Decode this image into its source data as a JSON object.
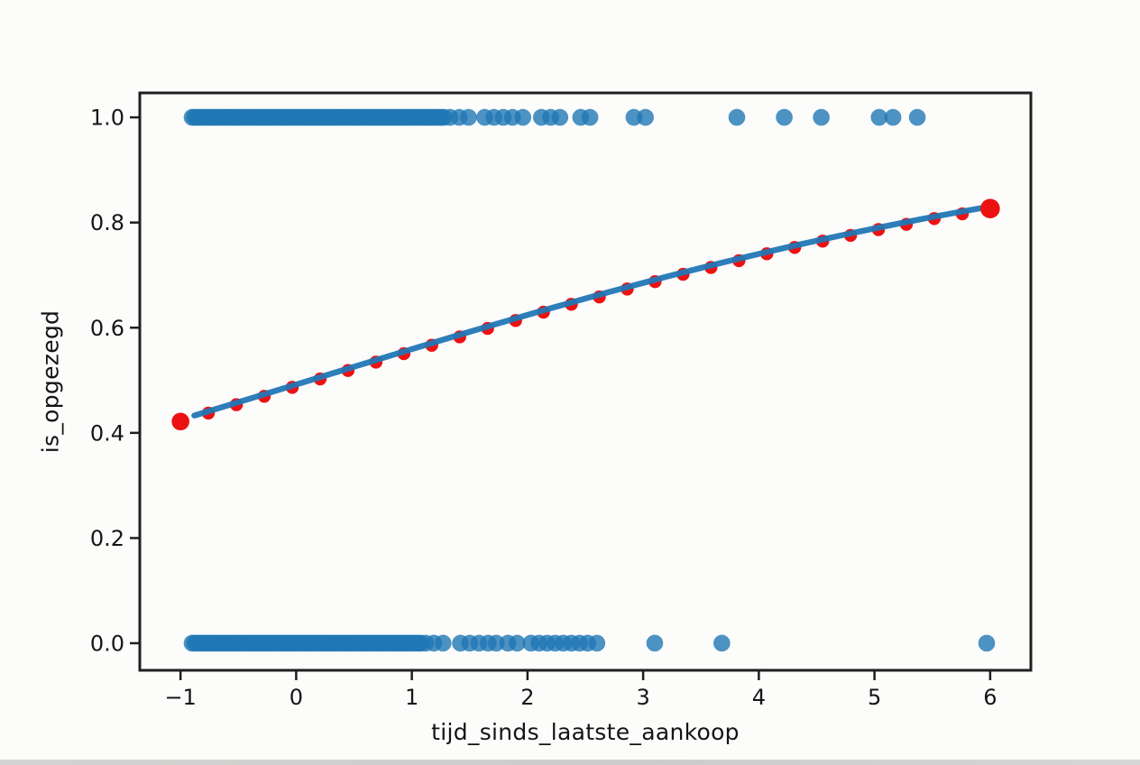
{
  "figure": {
    "background": "#fcfcfb",
    "axis_color": "#1f1f1f",
    "tick_label_color": "#161616"
  },
  "chart_data": {
    "type": "scatter",
    "xlabel": "tijd_sinds_laatste_aankoop",
    "ylabel": "is_opgezegd",
    "xlim": [
      -1.352,
      6.352
    ],
    "ylim": [
      -0.0515,
      1.0465
    ],
    "grid": false,
    "legend": null,
    "x_ticks": {
      "values": [
        -1,
        0,
        1,
        2,
        3,
        4,
        5,
        6
      ],
      "labels": [
        "−1",
        "0",
        "1",
        "2",
        "3",
        "4",
        "5",
        "6"
      ]
    },
    "y_ticks": {
      "values": [
        0.0,
        0.2,
        0.4,
        0.6,
        0.8,
        1.0
      ],
      "labels": [
        "0.0",
        "0.2",
        "0.4",
        "0.6",
        "0.8",
        "1.0"
      ]
    },
    "series": [
      {
        "name": "observations-y1",
        "type": "scatter",
        "color": "#1f77b4",
        "opacity": 0.8,
        "marker_radius": 9.3,
        "y": 1.0,
        "dense_x_ranges": [
          [
            -0.9,
            1.28
          ]
        ],
        "dense_step": 0.022,
        "x_points": [
          1.33,
          1.41,
          1.49,
          1.63,
          1.71,
          1.79,
          1.87,
          1.96,
          2.12,
          2.2,
          2.28,
          2.46,
          2.54,
          2.92,
          3.02,
          3.81,
          4.22,
          4.54,
          5.04,
          5.16,
          5.37
        ]
      },
      {
        "name": "observations-y0",
        "type": "scatter",
        "color": "#1f77b4",
        "opacity": 0.8,
        "marker_radius": 9.3,
        "y": 0.0,
        "dense_x_ranges": [
          [
            -0.9,
            1.08
          ]
        ],
        "dense_step": 0.022,
        "x_points": [
          1.12,
          1.19,
          1.27,
          1.42,
          1.5,
          1.58,
          1.66,
          1.73,
          1.83,
          1.91,
          2.03,
          2.1,
          2.17,
          2.24,
          2.31,
          2.38,
          2.45,
          2.52,
          2.6,
          3.1,
          3.68,
          5.97
        ]
      },
      {
        "name": "predicted-probabilities",
        "type": "scatter",
        "color": "#ec1212",
        "opacity": 1,
        "marker_radius": 7.2,
        "endpoint_radius": [
          9.8,
          10.8
        ],
        "points": [
          [
            -1.0,
            0.425
          ],
          [
            -0.759,
            0.441
          ],
          [
            -0.517,
            0.457
          ],
          [
            -0.276,
            0.473
          ],
          [
            -0.034,
            0.49
          ],
          [
            0.207,
            0.506
          ],
          [
            0.448,
            0.522
          ],
          [
            0.69,
            0.538
          ],
          [
            0.931,
            0.554
          ],
          [
            1.172,
            0.57
          ],
          [
            1.414,
            0.586
          ],
          [
            1.655,
            0.602
          ],
          [
            1.897,
            0.617
          ],
          [
            2.138,
            0.633
          ],
          [
            2.379,
            0.648
          ],
          [
            2.621,
            0.662
          ],
          [
            2.862,
            0.677
          ],
          [
            3.103,
            0.691
          ],
          [
            3.345,
            0.705
          ],
          [
            3.586,
            0.718
          ],
          [
            3.828,
            0.731
          ],
          [
            4.069,
            0.744
          ],
          [
            4.31,
            0.756
          ],
          [
            4.552,
            0.768
          ],
          [
            4.793,
            0.779
          ],
          [
            5.034,
            0.79
          ],
          [
            5.276,
            0.8
          ],
          [
            5.517,
            0.811
          ],
          [
            5.759,
            0.82
          ],
          [
            6.0,
            0.83
          ]
        ]
      },
      {
        "name": "logistic-fit-line",
        "type": "line",
        "color": "#2277b5",
        "width": 6.5,
        "opacity": 0.95,
        "x_range": [
          -0.88,
          5.94
        ],
        "model": {
          "form": "logistic",
          "intercept": -0.032,
          "slope": 0.27
        }
      }
    ]
  }
}
